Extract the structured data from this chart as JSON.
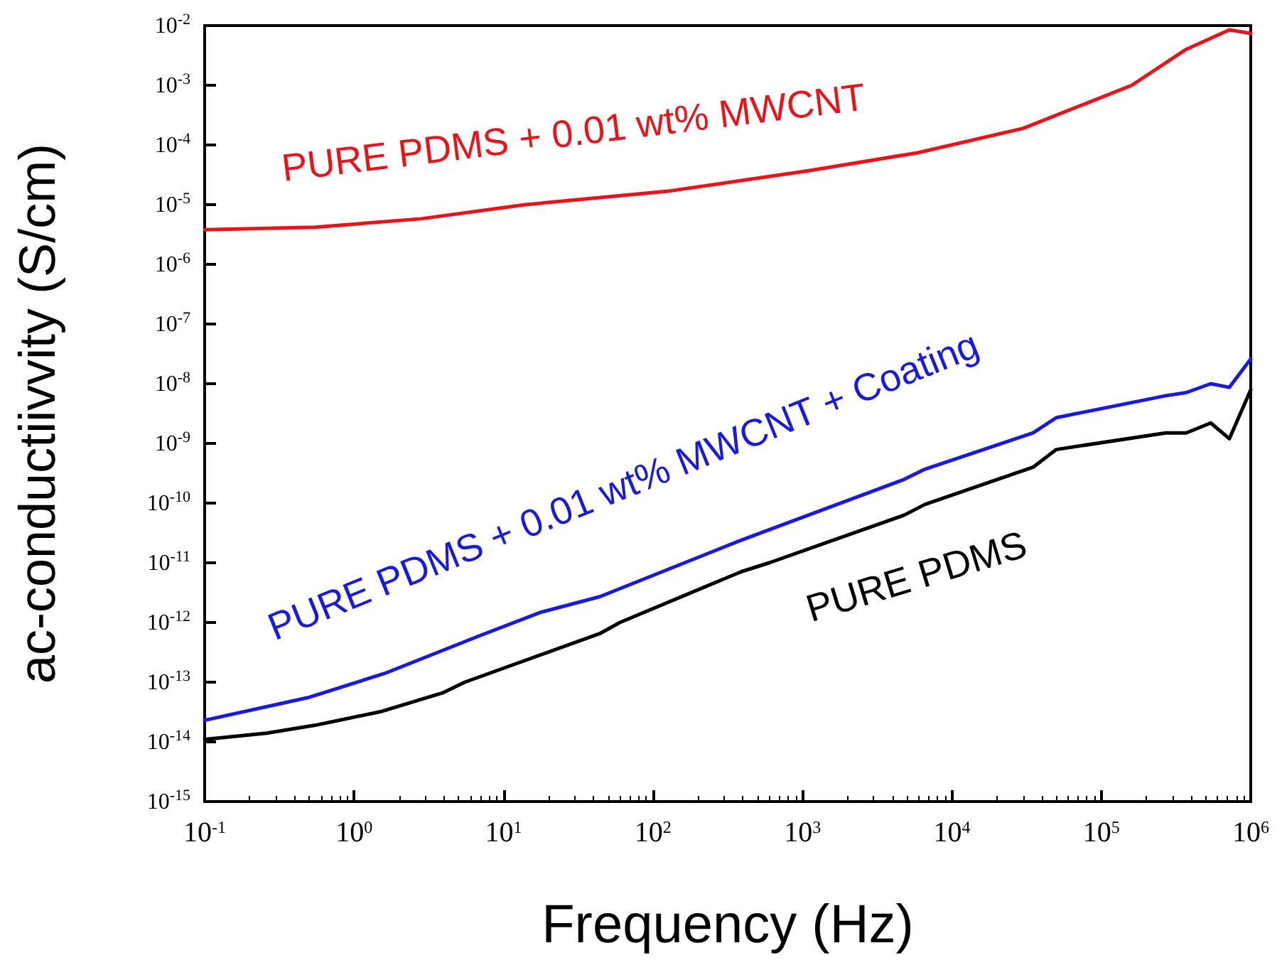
{
  "chart_data": {
    "type": "line",
    "xlabel": "Frequency (Hz)",
    "ylabel": "ac-conductiivvity (S/cm)",
    "log": "xy",
    "grid": false,
    "legend": false,
    "marker": "none",
    "line_style": "solid",
    "xlim": [
      0.1,
      1000000
    ],
    "ylim": [
      1e-15,
      0.01
    ],
    "xticks": [
      {
        "value": 0.1,
        "label": "10$^{-1}$"
      },
      {
        "value": 1,
        "label": "10$^{0}$"
      },
      {
        "value": 10,
        "label": "10$^{1}$"
      },
      {
        "value": 100,
        "label": "10$^{2}$"
      },
      {
        "value": 1000,
        "label": "10$^{3}$"
      },
      {
        "value": 10000,
        "label": "10$^{4}$"
      },
      {
        "value": 100000,
        "label": "10$^{5}$"
      },
      {
        "value": 1000000,
        "label": "10$^{6}$"
      }
    ],
    "yticks": [
      {
        "value": 1e-15,
        "label": "10$^{-15}$"
      },
      {
        "value": 1e-14,
        "label": "10$^{-14}$"
      },
      {
        "value": 1e-13,
        "label": "10$^{-13}$"
      },
      {
        "value": 1e-12,
        "label": "10$^{-12}$"
      },
      {
        "value": 1e-11,
        "label": "10$^{-11}$"
      },
      {
        "value": 1e-10,
        "label": "10$^{-10}$"
      },
      {
        "value": 1e-09,
        "label": "10$^{-9}$"
      },
      {
        "value": 1e-08,
        "label": "10$^{-8}$"
      },
      {
        "value": 1e-07,
        "label": "10$^{-7}$"
      },
      {
        "value": 1e-06,
        "label": "10$^{-6}$"
      },
      {
        "value": 1e-05,
        "label": "10$^{-5}$"
      },
      {
        "value": 0.0001,
        "label": "10$^{-4}$"
      },
      {
        "value": 0.001,
        "label": "10$^{-3}$"
      },
      {
        "value": 0.01,
        "label": "10$^{-2}$"
      }
    ],
    "series": [
      {
        "name": "PURE PDMS + 0.01 wt% MWCNT",
        "color": "#e8141c",
        "x": [
          0.1,
          0.55,
          2.8,
          14,
          130,
          1100,
          5900,
          30000,
          160000,
          370000,
          720000,
          1000000
        ],
        "values": [
          3.8e-06,
          4.2e-06,
          5.8e-06,
          1e-05,
          1.7e-05,
          3.7e-05,
          7.4e-05,
          0.00019,
          0.001,
          0.004,
          0.0085,
          0.0074
        ]
      },
      {
        "name": "PURE PDMS + 0.01 wt% MWCNT + Coating",
        "color": "#1a1adc",
        "x": [
          0.1,
          0.49,
          1.6,
          6.8,
          18,
          44,
          390,
          4800,
          6600,
          35000,
          50000,
          270000,
          370000,
          540000,
          720000,
          1000000
        ],
        "values": [
          2.3e-14,
          5.5e-14,
          1.4e-13,
          5.9e-13,
          1.5e-12,
          2.7e-12,
          2.4e-11,
          2.5e-10,
          3.7e-10,
          1.5e-09,
          2.7e-09,
          6.3e-09,
          7.1e-09,
          1e-08,
          8.7e-09,
          2.6e-08
        ]
      },
      {
        "name": "PURE PDMS",
        "color": "#000000",
        "x": [
          0.1,
          0.26,
          0.55,
          1.5,
          3.9,
          5.5,
          44,
          60,
          390,
          600,
          4800,
          6600,
          35000,
          50000,
          270000,
          370000,
          540000,
          720000,
          1000000
        ],
        "values": [
          1.1e-14,
          1.4e-14,
          1.9e-14,
          3.2e-14,
          6.6e-14,
          1e-13,
          6.5e-13,
          1e-12,
          7.1e-12,
          1e-11,
          6.3e-11,
          9.5e-11,
          4e-10,
          7.9e-10,
          1.5e-09,
          1.5e-09,
          2.2e-09,
          1.2e-09,
          7.9e-09
        ]
      }
    ]
  }
}
